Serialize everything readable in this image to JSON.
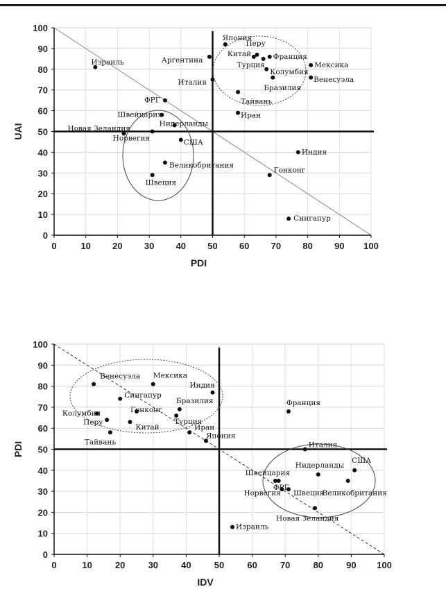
{
  "chart_data": [
    {
      "type": "scatter",
      "xlabel": "PDI",
      "ylabel": "UAI",
      "xlim": [
        0,
        100
      ],
      "ylim": [
        0,
        100
      ],
      "xticks": [
        0,
        10,
        20,
        30,
        40,
        50,
        60,
        70,
        80,
        90,
        100
      ],
      "yticks": [
        0,
        10,
        20,
        30,
        40,
        50,
        60,
        70,
        80,
        90,
        100
      ],
      "reference_lines": {
        "x": 50,
        "y": 50,
        "diagonal": [
          [
            0,
            100
          ],
          [
            100,
            0
          ]
        ]
      },
      "grid": true,
      "points": [
        {
          "label": "Япония",
          "x": 54,
          "y": 92
        },
        {
          "label": "Перу",
          "x": 64,
          "y": 87
        },
        {
          "label": "Аргентина",
          "x": 49,
          "y": 86
        },
        {
          "label": "Китай",
          "x": 63,
          "y": 86
        },
        {
          "label": "Франция",
          "x": 68,
          "y": 86
        },
        {
          "label": "Турция",
          "x": 66,
          "y": 85
        },
        {
          "label": "Мексика",
          "x": 81,
          "y": 82
        },
        {
          "label": "Израиль",
          "x": 13,
          "y": 81
        },
        {
          "label": "Колумбия",
          "x": 67,
          "y": 80
        },
        {
          "label": "Венесуэла",
          "x": 81,
          "y": 76
        },
        {
          "label": "Италия",
          "x": 50,
          "y": 75
        },
        {
          "label": "Бразилия",
          "x": 69,
          "y": 76
        },
        {
          "label": "Тайвань",
          "x": 58,
          "y": 69
        },
        {
          "label": "ФРГ",
          "x": 35,
          "y": 65
        },
        {
          "label": "Иран",
          "x": 58,
          "y": 59
        },
        {
          "label": "Швейцария",
          "x": 34,
          "y": 58
        },
        {
          "label": "Нидерланды",
          "x": 38,
          "y": 53
        },
        {
          "label": "Новая Зеландия",
          "x": 22,
          "y": 49
        },
        {
          "label": "Норвегия",
          "x": 31,
          "y": 50
        },
        {
          "label": "США",
          "x": 40,
          "y": 46
        },
        {
          "label": "Индия",
          "x": 77,
          "y": 40
        },
        {
          "label": "Великобритания",
          "x": 35,
          "y": 35
        },
        {
          "label": "Гонконг",
          "x": 68,
          "y": 29
        },
        {
          "label": "Швеция",
          "x": 31,
          "y": 29
        },
        {
          "label": "Сингапур",
          "x": 74,
          "y": 8
        }
      ]
    },
    {
      "type": "scatter",
      "xlabel": "IDV",
      "ylabel": "PDI",
      "xlim": [
        0,
        100
      ],
      "ylim": [
        0,
        100
      ],
      "xticks": [
        0,
        10,
        20,
        30,
        40,
        50,
        60,
        70,
        80,
        90,
        100
      ],
      "yticks": [
        0,
        10,
        20,
        30,
        40,
        50,
        60,
        70,
        80,
        90,
        100
      ],
      "reference_lines": {
        "x": 50,
        "y": 50,
        "diagonal": [
          [
            0,
            100
          ],
          [
            100,
            0
          ]
        ]
      },
      "grid": true,
      "points": [
        {
          "label": "Венесуэла",
          "x": 12,
          "y": 81
        },
        {
          "label": "Мексика",
          "x": 30,
          "y": 81
        },
        {
          "label": "Индия",
          "x": 48,
          "y": 77
        },
        {
          "label": "Сингапур",
          "x": 20,
          "y": 74
        },
        {
          "label": "Бразилия",
          "x": 38,
          "y": 69
        },
        {
          "label": "Гонконг",
          "x": 25,
          "y": 68
        },
        {
          "label": "Франция",
          "x": 71,
          "y": 68
        },
        {
          "label": "Колумбия",
          "x": 13,
          "y": 67
        },
        {
          "label": "Турция",
          "x": 37,
          "y": 66
        },
        {
          "label": "Перу",
          "x": 16,
          "y": 64
        },
        {
          "label": "Китай",
          "x": 23,
          "y": 63
        },
        {
          "label": "Иран",
          "x": 41,
          "y": 58
        },
        {
          "label": "Тайвань",
          "x": 17,
          "y": 58
        },
        {
          "label": "Япония",
          "x": 46,
          "y": 54
        },
        {
          "label": "Италия",
          "x": 76,
          "y": 50
        },
        {
          "label": "США",
          "x": 91,
          "y": 40
        },
        {
          "label": "Нидерланды",
          "x": 80,
          "y": 38
        },
        {
          "label": "Швейцария",
          "x": 68,
          "y": 35
        },
        {
          "label": "ФРГ",
          "x": 67,
          "y": 35
        },
        {
          "label": "Великобритания",
          "x": 89,
          "y": 35
        },
        {
          "label": "Норвегия",
          "x": 69,
          "y": 31
        },
        {
          "label": "Швеция",
          "x": 71,
          "y": 31
        },
        {
          "label": "Новая Зеландия",
          "x": 79,
          "y": 22
        },
        {
          "label": "Израиль",
          "x": 54,
          "y": 13
        }
      ]
    }
  ]
}
